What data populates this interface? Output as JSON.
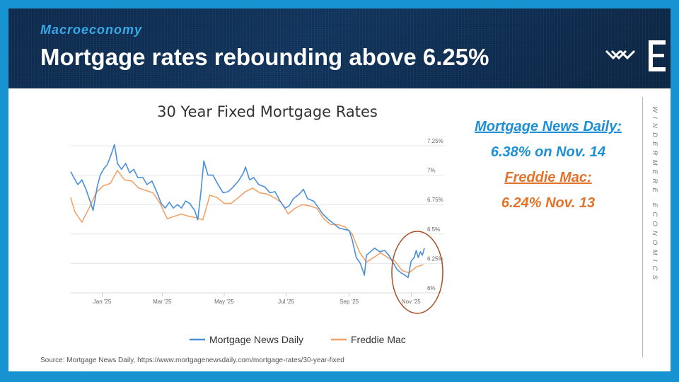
{
  "header": {
    "kicker": "Macroeconomy",
    "title": "Mortgage rates rebounding above 6.25%",
    "logo_icon": "windermere-logo-icon"
  },
  "side_label": "WINDERMERE ECONOMICS",
  "callouts": {
    "mnd_name": "Mortgage News Daily:",
    "mnd_value": "6.38% on Nov. 14",
    "fm_name": "Freddie Mac:",
    "fm_value": "6.24% Nov. 13"
  },
  "source": "Source: Mortgage News Daily, https://www.mortgagenewsdaily.com/mortgage-rates/30-year-fixed",
  "colors": {
    "mnd": "#4a90d9",
    "fm": "#f0a36a",
    "highlight": "#a5502a",
    "accent": "#3aa7e6"
  },
  "chart_data": {
    "type": "line",
    "title": "30 Year Fixed Mortgage Rates",
    "x_ticks": [
      "Jan '25",
      "Mar '25",
      "May '25",
      "Jul '25",
      "Sep '25",
      "Nov '25"
    ],
    "y_ticks": [
      "6%",
      "6.25%",
      "6.5%",
      "6.75%",
      "7%",
      "7.25%"
    ],
    "ylim": [
      6.0,
      7.25
    ],
    "x_start": "2024-12-01",
    "x_end": "2025-11-14",
    "legend_position": "bottom",
    "highlight": "circle around Oct–Nov 2025",
    "series": [
      {
        "name": "Mortgage News Daily",
        "color": "#4a90d9",
        "points": [
          [
            "2024-12-01",
            7.03
          ],
          [
            "2024-12-04",
            6.98
          ],
          [
            "2024-12-08",
            6.92
          ],
          [
            "2024-12-12",
            6.96
          ],
          [
            "2024-12-16",
            6.88
          ],
          [
            "2024-12-20",
            6.78
          ],
          [
            "2024-12-23",
            6.7
          ],
          [
            "2024-12-27",
            6.9
          ],
          [
            "2024-12-30",
            7.0
          ],
          [
            "2025-01-03",
            7.06
          ],
          [
            "2025-01-06",
            7.09
          ],
          [
            "2025-01-10",
            7.18
          ],
          [
            "2025-01-13",
            7.26
          ],
          [
            "2025-01-16",
            7.1
          ],
          [
            "2025-01-20",
            7.05
          ],
          [
            "2025-01-24",
            7.1
          ],
          [
            "2025-01-28",
            7.02
          ],
          [
            "2025-02-01",
            7.05
          ],
          [
            "2025-02-05",
            6.98
          ],
          [
            "2025-02-10",
            6.98
          ],
          [
            "2025-02-14",
            6.92
          ],
          [
            "2025-02-19",
            6.95
          ],
          [
            "2025-02-24",
            6.85
          ],
          [
            "2025-02-28",
            6.76
          ],
          [
            "2025-03-04",
            6.72
          ],
          [
            "2025-03-08",
            6.77
          ],
          [
            "2025-03-12",
            6.72
          ],
          [
            "2025-03-16",
            6.75
          ],
          [
            "2025-03-20",
            6.72
          ],
          [
            "2025-03-24",
            6.78
          ],
          [
            "2025-03-28",
            6.76
          ],
          [
            "2025-04-02",
            6.7
          ],
          [
            "2025-04-05",
            6.62
          ],
          [
            "2025-04-08",
            6.85
          ],
          [
            "2025-04-11",
            7.12
          ],
          [
            "2025-04-15",
            7.0
          ],
          [
            "2025-04-20",
            7.0
          ],
          [
            "2025-04-25",
            6.92
          ],
          [
            "2025-04-30",
            6.85
          ],
          [
            "2025-05-05",
            6.86
          ],
          [
            "2025-05-10",
            6.9
          ],
          [
            "2025-05-15",
            6.95
          ],
          [
            "2025-05-20",
            7.02
          ],
          [
            "2025-05-22",
            7.07
          ],
          [
            "2025-05-26",
            6.96
          ],
          [
            "2025-05-30",
            6.98
          ],
          [
            "2025-06-04",
            6.92
          ],
          [
            "2025-06-10",
            6.9
          ],
          [
            "2025-06-15",
            6.85
          ],
          [
            "2025-06-20",
            6.86
          ],
          [
            "2025-06-25",
            6.78
          ],
          [
            "2025-06-30",
            6.72
          ],
          [
            "2025-07-04",
            6.74
          ],
          [
            "2025-07-08",
            6.8
          ],
          [
            "2025-07-14",
            6.84
          ],
          [
            "2025-07-18",
            6.88
          ],
          [
            "2025-07-22",
            6.8
          ],
          [
            "2025-07-28",
            6.78
          ],
          [
            "2025-08-02",
            6.72
          ],
          [
            "2025-08-06",
            6.67
          ],
          [
            "2025-08-12",
            6.62
          ],
          [
            "2025-08-18",
            6.58
          ],
          [
            "2025-08-22",
            6.55
          ],
          [
            "2025-08-27",
            6.54
          ],
          [
            "2025-09-01",
            6.53
          ],
          [
            "2025-09-04",
            6.45
          ],
          [
            "2025-09-08",
            6.3
          ],
          [
            "2025-09-12",
            6.25
          ],
          [
            "2025-09-16",
            6.15
          ],
          [
            "2025-09-18",
            6.32
          ],
          [
            "2025-09-22",
            6.35
          ],
          [
            "2025-09-26",
            6.38
          ],
          [
            "2025-10-01",
            6.35
          ],
          [
            "2025-10-06",
            6.36
          ],
          [
            "2025-10-10",
            6.32
          ],
          [
            "2025-10-14",
            6.26
          ],
          [
            "2025-10-18",
            6.2
          ],
          [
            "2025-10-22",
            6.17
          ],
          [
            "2025-10-26",
            6.15
          ],
          [
            "2025-10-29",
            6.13
          ],
          [
            "2025-11-01",
            6.27
          ],
          [
            "2025-11-04",
            6.3
          ],
          [
            "2025-11-06",
            6.36
          ],
          [
            "2025-11-08",
            6.3
          ],
          [
            "2025-11-10",
            6.35
          ],
          [
            "2025-11-12",
            6.32
          ],
          [
            "2025-11-14",
            6.38
          ]
        ]
      },
      {
        "name": "Freddie Mac",
        "color": "#f0a36a",
        "points": [
          [
            "2024-12-01",
            6.81
          ],
          [
            "2024-12-05",
            6.69
          ],
          [
            "2024-12-12",
            6.6
          ],
          [
            "2024-12-19",
            6.72
          ],
          [
            "2024-12-26",
            6.85
          ],
          [
            "2025-01-02",
            6.91
          ],
          [
            "2025-01-09",
            6.93
          ],
          [
            "2025-01-16",
            7.04
          ],
          [
            "2025-01-23",
            6.96
          ],
          [
            "2025-01-30",
            6.95
          ],
          [
            "2025-02-06",
            6.89
          ],
          [
            "2025-02-13",
            6.87
          ],
          [
            "2025-02-20",
            6.85
          ],
          [
            "2025-02-27",
            6.76
          ],
          [
            "2025-03-06",
            6.63
          ],
          [
            "2025-03-13",
            6.65
          ],
          [
            "2025-03-20",
            6.67
          ],
          [
            "2025-03-27",
            6.65
          ],
          [
            "2025-04-03",
            6.64
          ],
          [
            "2025-04-10",
            6.62
          ],
          [
            "2025-04-17",
            6.83
          ],
          [
            "2025-04-24",
            6.81
          ],
          [
            "2025-05-01",
            6.76
          ],
          [
            "2025-05-08",
            6.76
          ],
          [
            "2025-05-15",
            6.81
          ],
          [
            "2025-05-22",
            6.86
          ],
          [
            "2025-05-29",
            6.89
          ],
          [
            "2025-06-05",
            6.85
          ],
          [
            "2025-06-12",
            6.84
          ],
          [
            "2025-06-19",
            6.81
          ],
          [
            "2025-06-26",
            6.77
          ],
          [
            "2025-07-03",
            6.67
          ],
          [
            "2025-07-10",
            6.72
          ],
          [
            "2025-07-17",
            6.75
          ],
          [
            "2025-07-24",
            6.74
          ],
          [
            "2025-07-31",
            6.72
          ],
          [
            "2025-08-07",
            6.63
          ],
          [
            "2025-08-14",
            6.58
          ],
          [
            "2025-08-21",
            6.58
          ],
          [
            "2025-08-28",
            6.56
          ],
          [
            "2025-09-04",
            6.5
          ],
          [
            "2025-09-11",
            6.35
          ],
          [
            "2025-09-18",
            6.26
          ],
          [
            "2025-09-25",
            6.3
          ],
          [
            "2025-10-02",
            6.34
          ],
          [
            "2025-10-09",
            6.3
          ],
          [
            "2025-10-16",
            6.27
          ],
          [
            "2025-10-23",
            6.19
          ],
          [
            "2025-10-30",
            6.17
          ],
          [
            "2025-11-06",
            6.22
          ],
          [
            "2025-11-13",
            6.24
          ]
        ]
      }
    ]
  }
}
